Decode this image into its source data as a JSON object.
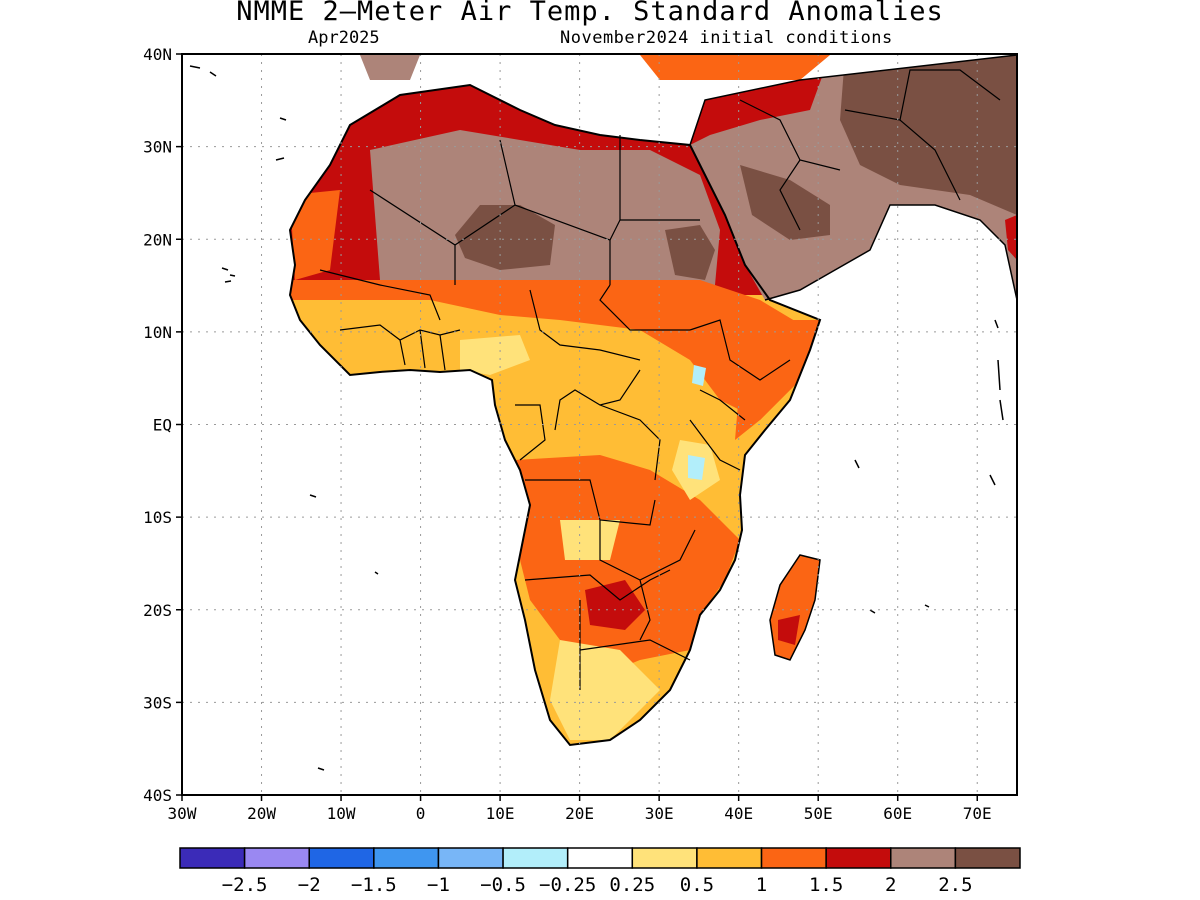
{
  "header": {
    "title": "NMME 2—Meter Air Temp. Standard Anomalies",
    "valid_month": "Apr2025",
    "initial_conditions": "November2024 initial conditions"
  },
  "map": {
    "region": "Africa",
    "lon_range": [
      -30,
      75
    ],
    "lat_range": [
      -40,
      40
    ],
    "lat_ticks": [
      {
        "value": 40,
        "label": "40N"
      },
      {
        "value": 30,
        "label": "30N"
      },
      {
        "value": 20,
        "label": "20N"
      },
      {
        "value": 10,
        "label": "10N"
      },
      {
        "value": 0,
        "label": "EQ"
      },
      {
        "value": -10,
        "label": "10S"
      },
      {
        "value": -20,
        "label": "20S"
      },
      {
        "value": -30,
        "label": "30S"
      },
      {
        "value": -40,
        "label": "40S"
      }
    ],
    "lon_ticks": [
      {
        "value": -30,
        "label": "30W"
      },
      {
        "value": -20,
        "label": "20W"
      },
      {
        "value": -10,
        "label": "10W"
      },
      {
        "value": 0,
        "label": "0"
      },
      {
        "value": 10,
        "label": "10E"
      },
      {
        "value": 20,
        "label": "20E"
      },
      {
        "value": 30,
        "label": "30E"
      },
      {
        "value": 40,
        "label": "40E"
      },
      {
        "value": 50,
        "label": "50E"
      },
      {
        "value": 60,
        "label": "60E"
      },
      {
        "value": 70,
        "label": "70E"
      }
    ],
    "grid": "dotted",
    "ocean_color": "#ffffff"
  },
  "colorbar": {
    "colors": [
      "#3b2bb8",
      "#9a88f2",
      "#1f66e5",
      "#3f96f0",
      "#78b6f7",
      "#b2eefa",
      "#ffffff",
      "#ffe27a",
      "#ffbd35",
      "#fb6514",
      "#c40c0c",
      "#ad8479",
      "#7a5043"
    ],
    "labels": [
      "−2.5",
      "−2",
      "−1.5",
      "−1",
      "−0.5",
      "−0.25",
      "0.25",
      "0.5",
      "1",
      "1.5",
      "2",
      "2.5"
    ]
  }
}
